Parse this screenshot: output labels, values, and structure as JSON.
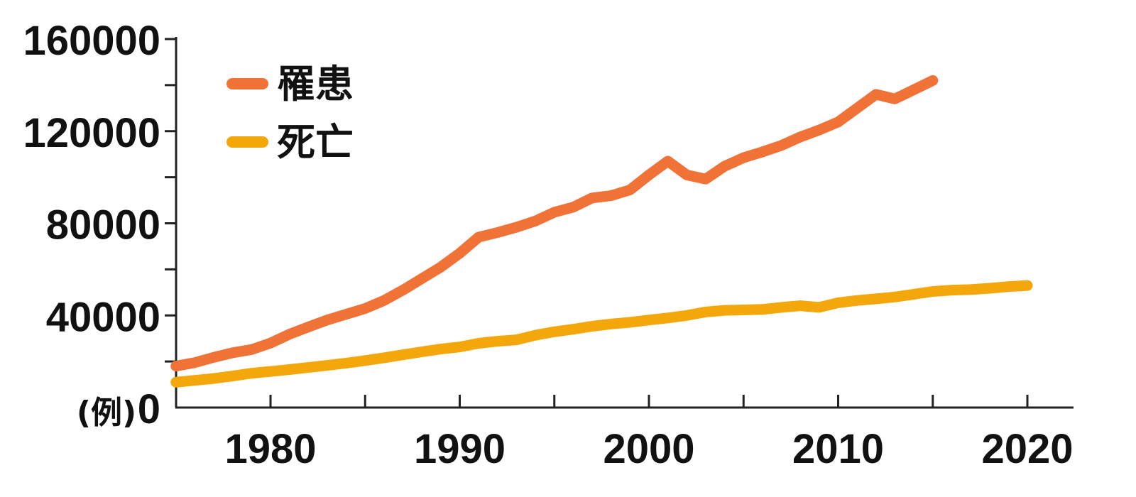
{
  "chart_data": {
    "type": "line",
    "title": "",
    "xlabel": "",
    "ylabel": "",
    "y_unit_label": "(例)",
    "xlim": [
      1975,
      2022
    ],
    "ylim": [
      0,
      160000
    ],
    "x_tick_labels": [
      "1980",
      "1990",
      "2000",
      "2010",
      "2020"
    ],
    "y_tick_labels": [
      "0",
      "40000",
      "80000",
      "120000",
      "160000"
    ],
    "legend_position": "top-left",
    "grid": false,
    "series": [
      {
        "name": "罹患",
        "color": "#f07236",
        "x": [
          1975,
          1976,
          1977,
          1978,
          1979,
          1980,
          1981,
          1982,
          1983,
          1984,
          1985,
          1986,
          1987,
          1988,
          1989,
          1990,
          1991,
          1992,
          1993,
          1994,
          1995,
          1996,
          1997,
          1998,
          1999,
          2000,
          2001,
          2002,
          2003,
          2004,
          2005,
          2006,
          2007,
          2008,
          2009,
          2010,
          2011,
          2012,
          2013,
          2014,
          2015
        ],
        "values": [
          18000,
          19500,
          21800,
          23800,
          25200,
          28000,
          31800,
          35000,
          38000,
          40500,
          43000,
          46500,
          51000,
          56000,
          61000,
          67000,
          74000,
          76000,
          78300,
          81000,
          84800,
          87000,
          91000,
          92000,
          94500,
          101000,
          107000,
          101000,
          99200,
          104800,
          108500,
          111000,
          113800,
          117500,
          120500,
          124000,
          130000,
          136000,
          134000,
          138000,
          142000
        ]
      },
      {
        "name": "死亡",
        "color": "#f4a70b",
        "x": [
          1975,
          1976,
          1977,
          1978,
          1979,
          1980,
          1981,
          1982,
          1983,
          1984,
          1985,
          1986,
          1987,
          1988,
          1989,
          1990,
          1991,
          1992,
          1993,
          1994,
          1995,
          1996,
          1997,
          1998,
          1999,
          2000,
          2001,
          2002,
          2003,
          2004,
          2005,
          2006,
          2007,
          2008,
          2009,
          2010,
          2011,
          2012,
          2013,
          2014,
          2015,
          2016,
          2017,
          2018,
          2019,
          2020
        ],
        "values": [
          11000,
          11800,
          12600,
          13700,
          14900,
          15700,
          16500,
          17400,
          18300,
          19300,
          20400,
          21600,
          22900,
          24200,
          25400,
          26300,
          27900,
          28800,
          29400,
          31400,
          32900,
          34000,
          35300,
          36300,
          37000,
          38000,
          38900,
          40000,
          41500,
          42200,
          42400,
          42600,
          43500,
          44200,
          43500,
          45500,
          46500,
          47200,
          48000,
          49200,
          50400,
          51000,
          51200,
          51800,
          52500,
          53000
        ]
      }
    ]
  }
}
